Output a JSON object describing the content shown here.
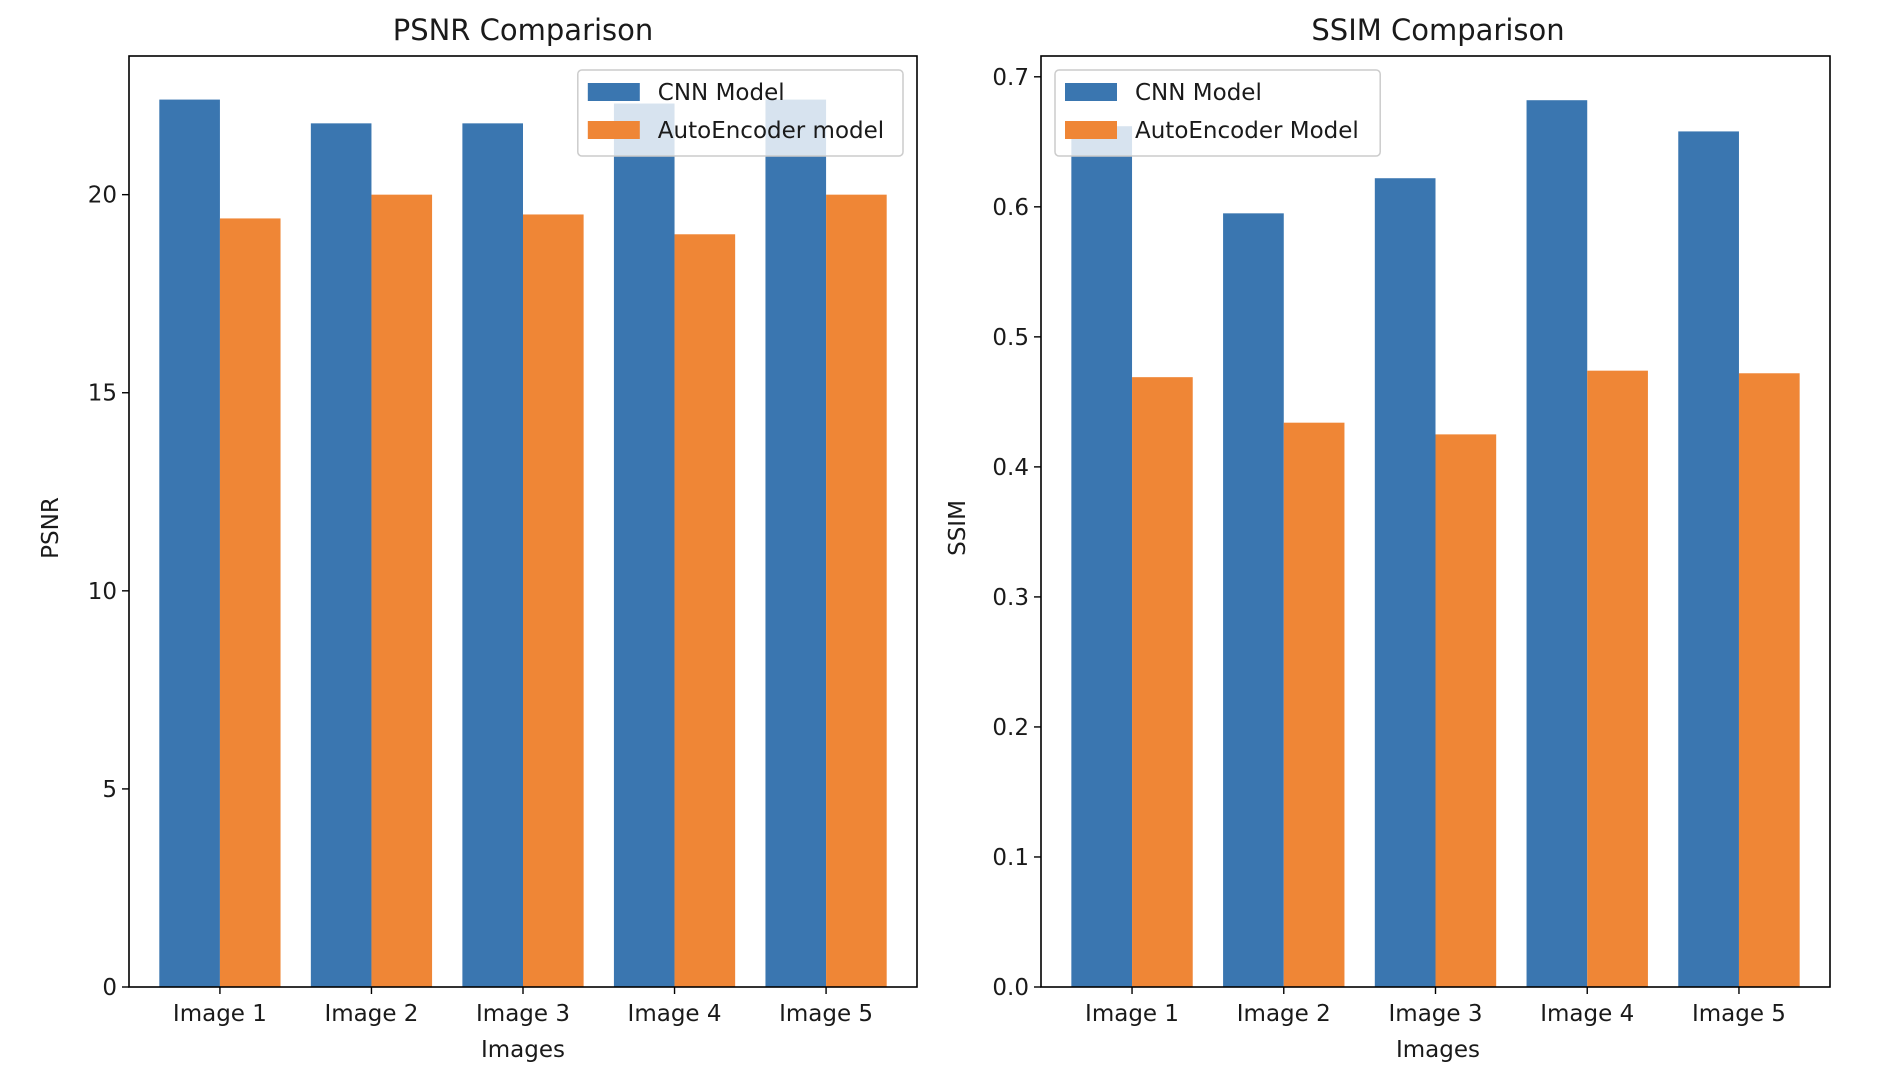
{
  "chart_data": [
    {
      "type": "bar",
      "title": "PSNR Comparison",
      "xlabel": "Images",
      "ylabel": "PSNR",
      "categories": [
        "Image 1",
        "Image 2",
        "Image 3",
        "Image 4",
        "Image 5"
      ],
      "series": [
        {
          "name": "CNN Model",
          "color": "#3a76b0",
          "values": [
            22.4,
            21.8,
            21.8,
            22.3,
            22.4
          ]
        },
        {
          "name": "AutoEncoder model",
          "color": "#ef8636",
          "values": [
            19.4,
            20.0,
            19.5,
            19.0,
            20.0
          ]
        }
      ],
      "ylim": [
        0,
        23.5
      ],
      "yticks": [
        0,
        5,
        10,
        15,
        20
      ],
      "ytick_labels": [
        "0",
        "5",
        "10",
        "15",
        "20"
      ],
      "legend_position": "top-right",
      "grid": false
    },
    {
      "type": "bar",
      "title": "SSIM Comparison",
      "xlabel": "Images",
      "ylabel": "SSIM",
      "categories": [
        "Image 1",
        "Image 2",
        "Image 3",
        "Image 4",
        "Image 5"
      ],
      "series": [
        {
          "name": "CNN Model",
          "color": "#3a76b0",
          "values": [
            0.662,
            0.595,
            0.622,
            0.682,
            0.658
          ]
        },
        {
          "name": "AutoEncoder Model",
          "color": "#ef8636",
          "values": [
            0.469,
            0.434,
            0.425,
            0.474,
            0.472
          ]
        }
      ],
      "ylim": [
        0,
        0.716
      ],
      "yticks": [
        0.0,
        0.1,
        0.2,
        0.3,
        0.4,
        0.5,
        0.6,
        0.7
      ],
      "ytick_labels": [
        "0.0",
        "0.1",
        "0.2",
        "0.3",
        "0.4",
        "0.5",
        "0.6",
        "0.7"
      ],
      "legend_position": "top-left",
      "grid": false
    }
  ]
}
